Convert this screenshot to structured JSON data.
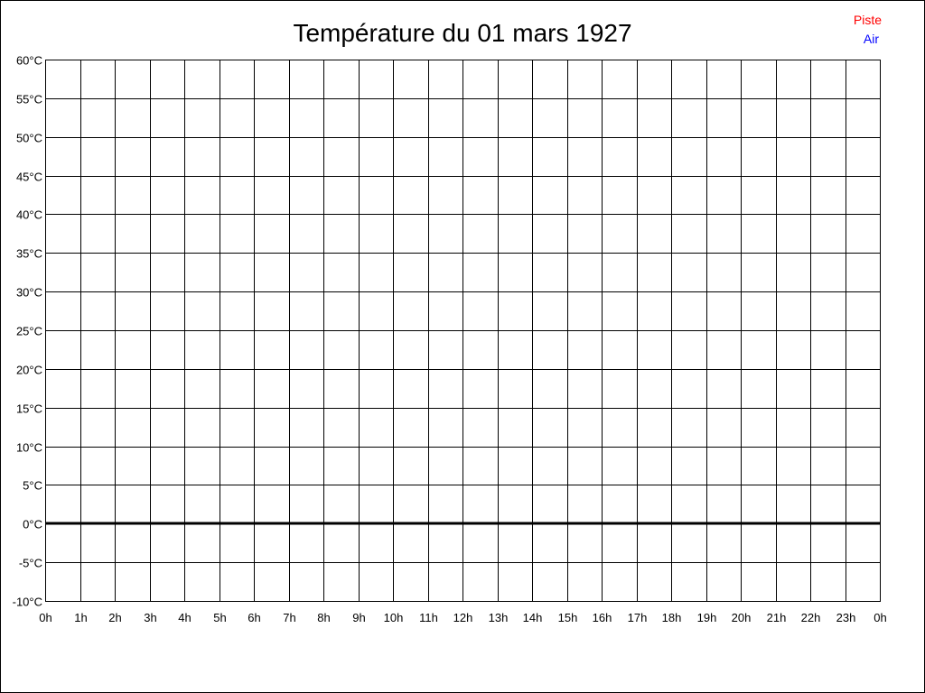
{
  "chart_data": {
    "type": "line",
    "title": "Température du 01 mars 1927",
    "xlabel": "",
    "ylabel": "",
    "x_tick_labels": [
      "0h",
      "1h",
      "2h",
      "3h",
      "4h",
      "5h",
      "6h",
      "7h",
      "8h",
      "9h",
      "10h",
      "11h",
      "12h",
      "13h",
      "14h",
      "15h",
      "16h",
      "17h",
      "18h",
      "19h",
      "20h",
      "21h",
      "22h",
      "23h",
      "0h"
    ],
    "y_tick_labels": [
      "60°C",
      "55°C",
      "50°C",
      "45°C",
      "40°C",
      "35°C",
      "30°C",
      "25°C",
      "20°C",
      "15°C",
      "10°C",
      "5°C",
      "0°C",
      "-5°C",
      "-10°C"
    ],
    "ylim": [
      -10,
      60
    ],
    "xlim": [
      0,
      24
    ],
    "y_step": 5,
    "grid": true,
    "legend_position": "top-right",
    "series": [
      {
        "name": "Piste",
        "color": "#ff0000",
        "values": []
      },
      {
        "name": "Air",
        "color": "#0000ff",
        "values": []
      }
    ]
  }
}
